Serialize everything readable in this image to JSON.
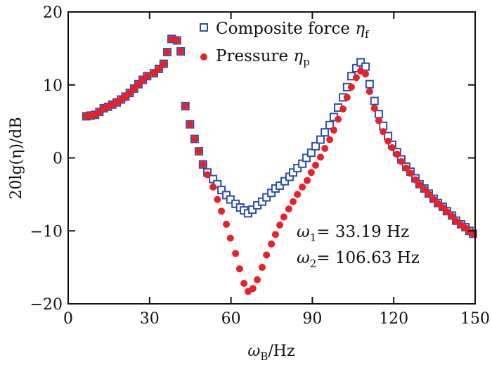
{
  "chart_data": {
    "type": "scatter",
    "xlabel": {
      "symbol": "ω",
      "sub": "B",
      "rest": "/Hz"
    },
    "ylabel": "20lg(η)/dB",
    "xlim": [
      0,
      150
    ],
    "ylim": [
      -20,
      20
    ],
    "xticks": [
      0,
      30,
      60,
      90,
      120,
      150
    ],
    "yticks": [
      20,
      10,
      0,
      -10,
      -20
    ],
    "ytick_labels": [
      "20",
      "10",
      "0",
      "−10",
      "−20"
    ],
    "grid": false,
    "legend_placement": "top-center",
    "annotations": [
      {
        "symbol": "ω",
        "sub": "1",
        "text": "= 33.19 Hz"
      },
      {
        "symbol": "ω",
        "sub": "2",
        "text": "= 106.63 Hz"
      }
    ],
    "series": [
      {
        "name": "Composite force ηf",
        "label": {
          "text": "Composite force ",
          "symbol": "η",
          "sub": "f"
        },
        "marker": "open-square",
        "color": "#2b50aa",
        "points": [
          [
            6.7,
            5.7
          ],
          [
            8.3,
            5.8
          ],
          [
            9.9,
            5.9
          ],
          [
            11.5,
            6.3
          ],
          [
            13.1,
            6.8
          ],
          [
            14.7,
            7.0
          ],
          [
            16.3,
            7.3
          ],
          [
            17.9,
            7.6
          ],
          [
            19.5,
            8.0
          ],
          [
            21.1,
            8.4
          ],
          [
            22.7,
            8.9
          ],
          [
            24.3,
            9.5
          ],
          [
            25.9,
            10.1
          ],
          [
            27.5,
            10.7
          ],
          [
            29.1,
            11.2
          ],
          [
            31.6,
            11.6
          ],
          [
            33.4,
            12.2
          ],
          [
            35.2,
            12.9
          ],
          [
            36.5,
            14.5
          ],
          [
            38.1,
            16.3
          ],
          [
            40.1,
            16.1
          ],
          [
            41.5,
            14.6
          ],
          [
            43.2,
            7.1
          ],
          [
            44.9,
            4.6
          ],
          [
            46.6,
            2.6
          ],
          [
            48.2,
            0.9
          ],
          [
            49.7,
            -0.9
          ],
          [
            51.3,
            -2.0
          ],
          [
            53.4,
            -2.9
          ],
          [
            55.0,
            -3.6
          ],
          [
            56.5,
            -4.4
          ],
          [
            58.3,
            -5.1
          ],
          [
            59.8,
            -5.7
          ],
          [
            61.7,
            -6.3
          ],
          [
            63.4,
            -6.8
          ],
          [
            64.8,
            -7.2
          ],
          [
            66.3,
            -7.6
          ],
          [
            67.9,
            -7.1
          ],
          [
            69.7,
            -6.5
          ],
          [
            71.5,
            -6.0
          ],
          [
            73.1,
            -5.4
          ],
          [
            74.9,
            -4.8
          ],
          [
            76.4,
            -4.2
          ],
          [
            78.0,
            -3.8
          ],
          [
            79.8,
            -3.2
          ],
          [
            81.6,
            -2.6
          ],
          [
            82.9,
            -2.0
          ],
          [
            84.5,
            -1.4
          ],
          [
            86.3,
            -0.8
          ],
          [
            87.8,
            0.0
          ],
          [
            89.6,
            0.7
          ],
          [
            91.2,
            1.6
          ],
          [
            93.0,
            2.5
          ],
          [
            94.6,
            3.5
          ],
          [
            96.4,
            4.5
          ],
          [
            97.9,
            5.6
          ],
          [
            99.5,
            6.9
          ],
          [
            101.3,
            8.3
          ],
          [
            102.8,
            9.7
          ],
          [
            104.4,
            11.2
          ],
          [
            106.2,
            12.3
          ],
          [
            107.8,
            13.1
          ],
          [
            109.6,
            12.5
          ],
          [
            111.1,
            10.1
          ],
          [
            112.9,
            7.8
          ],
          [
            114.5,
            6.0
          ],
          [
            116.1,
            4.4
          ],
          [
            117.9,
            3.0
          ],
          [
            119.4,
            1.8
          ],
          [
            121.2,
            0.8
          ],
          [
            122.8,
            -0.2
          ],
          [
            124.6,
            -1.2
          ],
          [
            126.2,
            -1.9
          ],
          [
            128.0,
            -2.8
          ],
          [
            129.5,
            -3.6
          ],
          [
            131.3,
            -4.2
          ],
          [
            132.9,
            -4.9
          ],
          [
            134.7,
            -5.6
          ],
          [
            136.3,
            -6.2
          ],
          [
            138.1,
            -6.7
          ],
          [
            139.6,
            -7.3
          ],
          [
            141.5,
            -7.9
          ],
          [
            143.0,
            -8.6
          ],
          [
            144.8,
            -9.1
          ],
          [
            146.4,
            -9.5
          ],
          [
            147.9,
            -10.0
          ],
          [
            149.2,
            -10.4
          ]
        ]
      },
      {
        "name": "Pressure ηp",
        "label": {
          "text": "Pressure ",
          "symbol": "η",
          "sub": "p"
        },
        "marker": "filled-circle",
        "color": "#e8202a",
        "points": [
          [
            6.7,
            5.7
          ],
          [
            8.3,
            5.8
          ],
          [
            9.9,
            5.9
          ],
          [
            11.5,
            6.3
          ],
          [
            13.1,
            6.8
          ],
          [
            14.7,
            7.0
          ],
          [
            16.3,
            7.3
          ],
          [
            17.9,
            7.6
          ],
          [
            19.5,
            8.0
          ],
          [
            21.1,
            8.4
          ],
          [
            22.7,
            8.9
          ],
          [
            24.3,
            9.5
          ],
          [
            25.9,
            10.1
          ],
          [
            27.5,
            10.7
          ],
          [
            29.1,
            11.2
          ],
          [
            31.6,
            11.6
          ],
          [
            33.4,
            12.2
          ],
          [
            35.2,
            12.9
          ],
          [
            36.5,
            14.5
          ],
          [
            38.1,
            16.3
          ],
          [
            40.1,
            16.1
          ],
          [
            41.5,
            14.6
          ],
          [
            43.2,
            7.1
          ],
          [
            44.9,
            4.6
          ],
          [
            46.6,
            2.6
          ],
          [
            48.2,
            0.9
          ],
          [
            49.7,
            -0.9
          ],
          [
            51.3,
            -2.3
          ],
          [
            53.4,
            -4.0
          ],
          [
            55.0,
            -5.7
          ],
          [
            56.5,
            -7.3
          ],
          [
            58.3,
            -9.1
          ],
          [
            59.8,
            -11.0
          ],
          [
            61.7,
            -13.1
          ],
          [
            63.2,
            -15.2
          ],
          [
            64.8,
            -17.2
          ],
          [
            66.3,
            -18.3
          ],
          [
            68.1,
            -17.9
          ],
          [
            69.7,
            -16.7
          ],
          [
            71.5,
            -15.0
          ],
          [
            73.1,
            -13.3
          ],
          [
            74.9,
            -11.8
          ],
          [
            76.4,
            -10.5
          ],
          [
            78.0,
            -9.2
          ],
          [
            79.5,
            -8.1
          ],
          [
            81.3,
            -7.0
          ],
          [
            82.9,
            -6.0
          ],
          [
            84.5,
            -5.0
          ],
          [
            86.3,
            -4.0
          ],
          [
            88.1,
            -3.1
          ],
          [
            89.6,
            -2.0
          ],
          [
            91.2,
            -1.0
          ],
          [
            93.0,
            0.1
          ],
          [
            94.6,
            1.3
          ],
          [
            96.4,
            2.5
          ],
          [
            97.9,
            3.8
          ],
          [
            99.5,
            5.3
          ],
          [
            101.3,
            6.7
          ],
          [
            102.8,
            8.3
          ],
          [
            104.4,
            9.7
          ],
          [
            106.2,
            11.0
          ],
          [
            107.8,
            11.9
          ],
          [
            109.6,
            11.5
          ],
          [
            111.1,
            9.1
          ],
          [
            112.9,
            6.8
          ],
          [
            114.5,
            5.1
          ],
          [
            116.1,
            3.6
          ],
          [
            117.9,
            2.3
          ],
          [
            119.4,
            1.4
          ],
          [
            121.2,
            0.5
          ],
          [
            122.8,
            -0.5
          ],
          [
            124.6,
            -1.4
          ],
          [
            126.2,
            -2.1
          ],
          [
            128.0,
            -3.0
          ],
          [
            129.5,
            -3.7
          ],
          [
            131.3,
            -4.3
          ],
          [
            132.9,
            -5.0
          ],
          [
            134.7,
            -5.7
          ],
          [
            136.3,
            -6.3
          ],
          [
            138.1,
            -6.8
          ],
          [
            139.6,
            -7.4
          ],
          [
            141.5,
            -8.0
          ],
          [
            143.0,
            -8.7
          ],
          [
            144.8,
            -9.2
          ],
          [
            146.4,
            -9.6
          ],
          [
            147.9,
            -10.1
          ],
          [
            149.2,
            -10.4
          ]
        ]
      }
    ]
  }
}
